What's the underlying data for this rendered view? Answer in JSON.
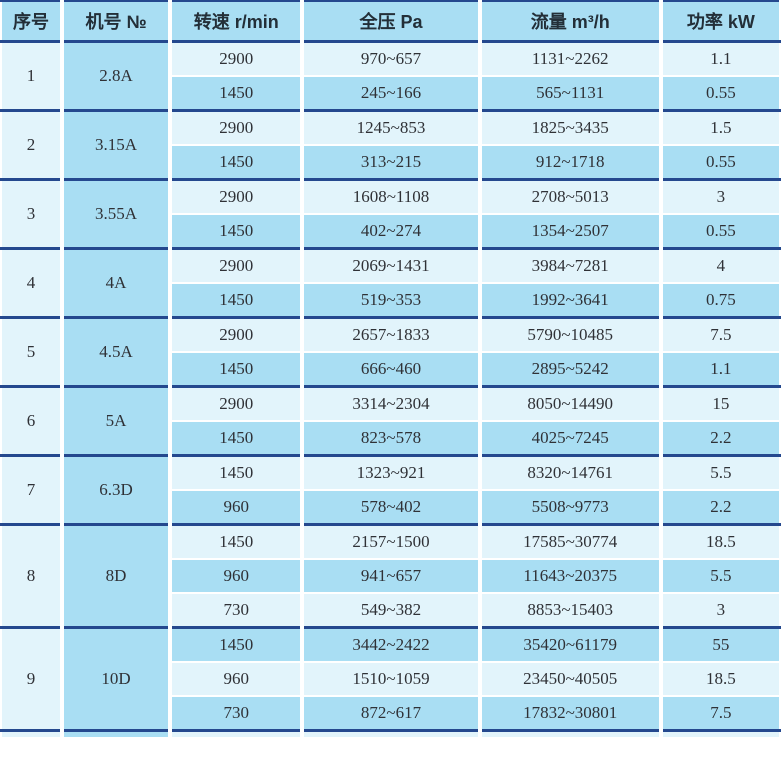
{
  "colors": {
    "navy_rule": "#24488e",
    "dark_cyan_cell": "#a9def3",
    "light_cyan_cell": "#e2f4fb",
    "header_text": "#232f38",
    "body_text": "#2f3136",
    "cell_gap": "#ffffff"
  },
  "table": {
    "columns": [
      {
        "key": "index",
        "label": "序号"
      },
      {
        "key": "model",
        "label": "机号 №"
      },
      {
        "key": "speed",
        "label": "转速 r/min"
      },
      {
        "key": "pressure",
        "label": "全压 Pa"
      },
      {
        "key": "flow",
        "label": "流量 m³/h"
      },
      {
        "key": "power",
        "label": "功率 kW"
      }
    ],
    "groups": [
      {
        "index": "1",
        "model": "2.8A",
        "rows": [
          {
            "speed": "2900",
            "pressure": "970~657",
            "flow": "1131~2262",
            "power": "1.1"
          },
          {
            "speed": "1450",
            "pressure": "245~166",
            "flow": "565~1131",
            "power": "0.55"
          }
        ]
      },
      {
        "index": "2",
        "model": "3.15A",
        "rows": [
          {
            "speed": "2900",
            "pressure": "1245~853",
            "flow": "1825~3435",
            "power": "1.5"
          },
          {
            "speed": "1450",
            "pressure": "313~215",
            "flow": "912~1718",
            "power": "0.55"
          }
        ]
      },
      {
        "index": "3",
        "model": "3.55A",
        "rows": [
          {
            "speed": "2900",
            "pressure": "1608~1108",
            "flow": "2708~5013",
            "power": "3"
          },
          {
            "speed": "1450",
            "pressure": "402~274",
            "flow": "1354~2507",
            "power": "0.55"
          }
        ]
      },
      {
        "index": "4",
        "model": "4A",
        "rows": [
          {
            "speed": "2900",
            "pressure": "2069~1431",
            "flow": "3984~7281",
            "power": "4"
          },
          {
            "speed": "1450",
            "pressure": "519~353",
            "flow": "1992~3641",
            "power": "0.75"
          }
        ]
      },
      {
        "index": "5",
        "model": "4.5A",
        "rows": [
          {
            "speed": "2900",
            "pressure": "2657~1833",
            "flow": "5790~10485",
            "power": "7.5"
          },
          {
            "speed": "1450",
            "pressure": "666~460",
            "flow": "2895~5242",
            "power": "1.1"
          }
        ]
      },
      {
        "index": "6",
        "model": "5A",
        "rows": [
          {
            "speed": "2900",
            "pressure": "3314~2304",
            "flow": "8050~14490",
            "power": "15"
          },
          {
            "speed": "1450",
            "pressure": "823~578",
            "flow": "4025~7245",
            "power": "2.2"
          }
        ]
      },
      {
        "index": "7",
        "model": "6.3D",
        "rows": [
          {
            "speed": "1450",
            "pressure": "1323~921",
            "flow": "8320~14761",
            "power": "5.5"
          },
          {
            "speed": "960",
            "pressure": "578~402",
            "flow": "5508~9773",
            "power": "2.2"
          }
        ]
      },
      {
        "index": "8",
        "model": "8D",
        "rows": [
          {
            "speed": "1450",
            "pressure": "2157~1500",
            "flow": "17585~30774",
            "power": "18.5"
          },
          {
            "speed": "960",
            "pressure": "941~657",
            "flow": "11643~20375",
            "power": "5.5"
          },
          {
            "speed": "730",
            "pressure": "549~382",
            "flow": "8853~15403",
            "power": "3"
          }
        ]
      },
      {
        "index": "9",
        "model": "10D",
        "rows": [
          {
            "speed": "1450",
            "pressure": "3442~2422",
            "flow": "35420~61179",
            "power": "55"
          },
          {
            "speed": "960",
            "pressure": "1510~1059",
            "flow": "23450~40505",
            "power": "18.5"
          },
          {
            "speed": "730",
            "pressure": "872~617",
            "flow": "17832~30801",
            "power": "7.5"
          }
        ]
      }
    ],
    "partial_row_visible": true
  }
}
